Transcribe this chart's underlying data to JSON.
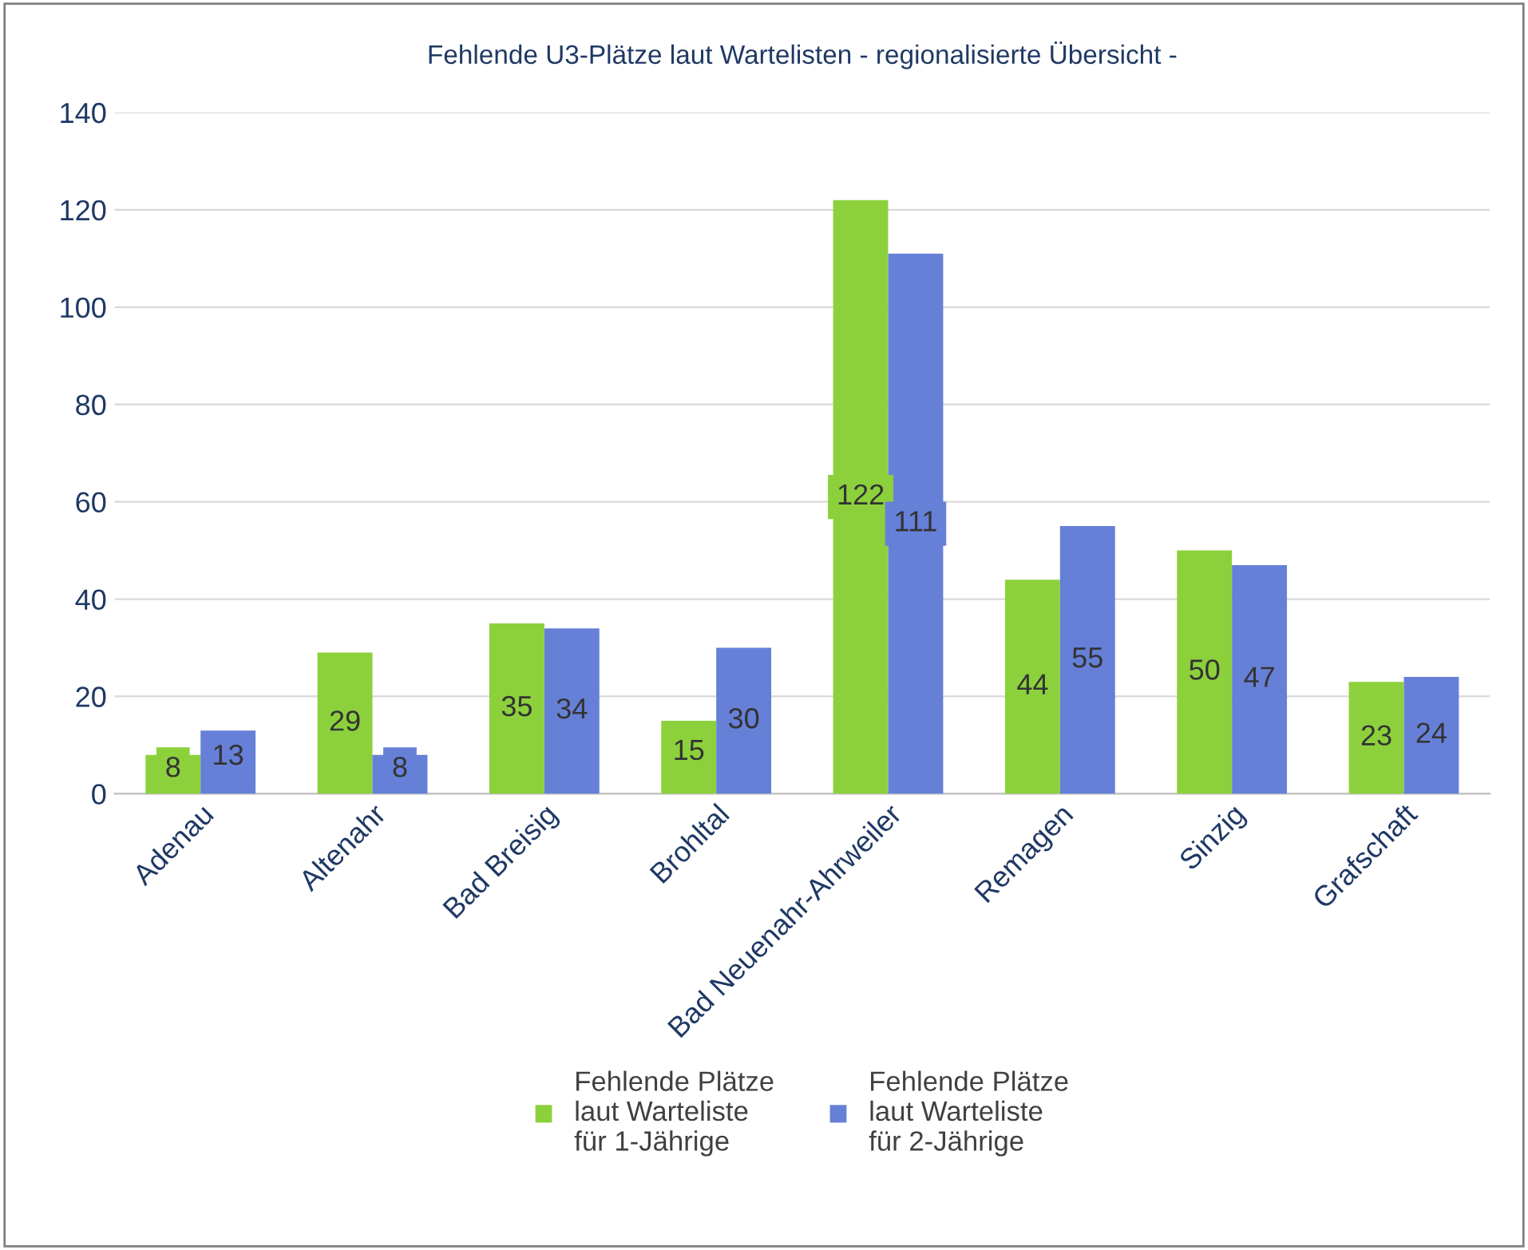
{
  "chart_data": {
    "type": "bar",
    "title": "Fehlende U3-Plätze laut Wartelisten - regionalisierte Übersicht -",
    "categories": [
      "Adenau",
      "Altenahr",
      "Bad Breisig",
      "Brohltal",
      "Bad Neuenahr-Ahrweiler",
      "Remagen",
      "Sinzig",
      "Grafschaft"
    ],
    "series": [
      {
        "name": "Fehlende Plätze\nlaut Warteliste\nfür 1-Jährige",
        "color": "#8cd13c",
        "values": [
          8,
          29,
          35,
          15,
          122,
          44,
          50,
          23
        ]
      },
      {
        "name": "Fehlende Plätze\nlaut Warteliste\nfür 2-Jährige",
        "color": "#6680d8",
        "values": [
          13,
          8,
          34,
          30,
          111,
          55,
          47,
          24
        ]
      }
    ],
    "ylim": [
      0,
      140
    ],
    "yticks": [
      0,
      20,
      40,
      60,
      80,
      100,
      120,
      140
    ],
    "grid": "y",
    "legend": "bottom",
    "data_labels": true
  }
}
